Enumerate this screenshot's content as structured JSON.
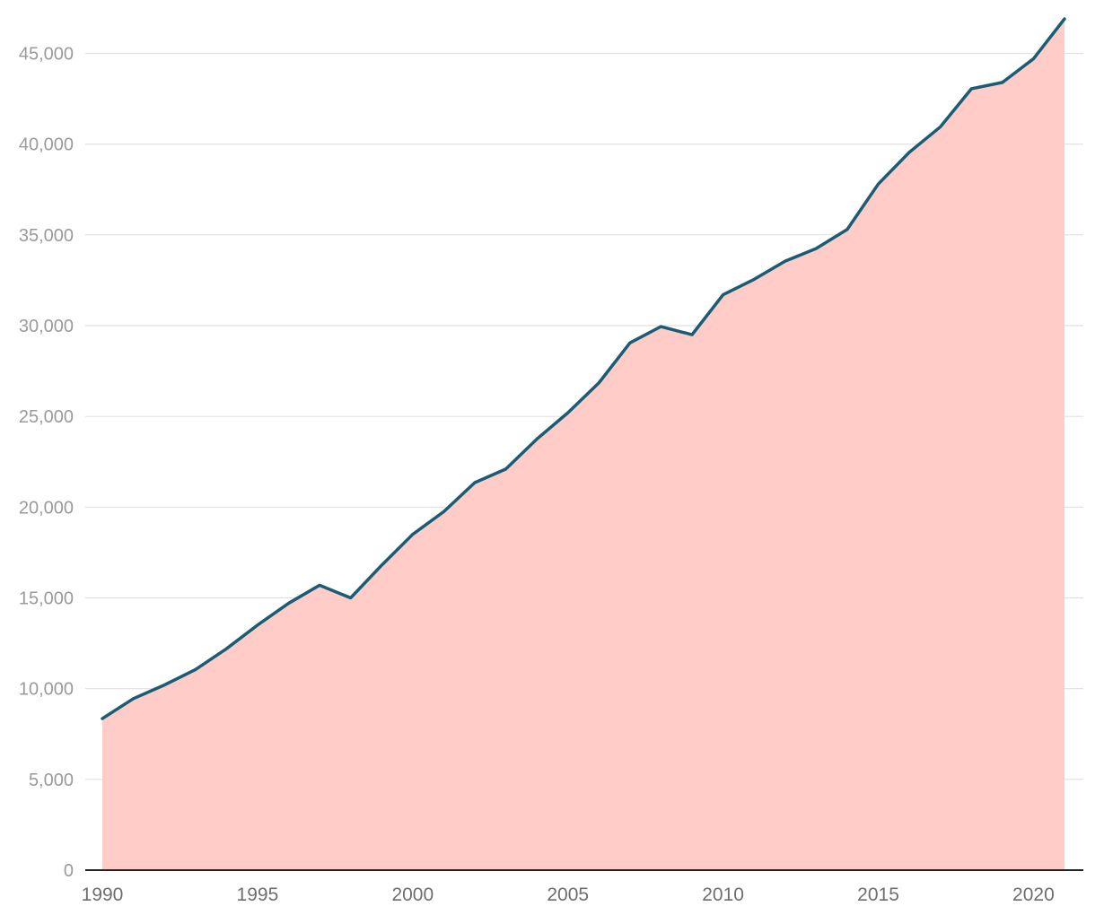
{
  "chart_data": {
    "type": "area",
    "title": "",
    "xlabel": "",
    "ylabel": "",
    "grid": true,
    "legend": "none",
    "xlim": [
      1990,
      2021
    ],
    "ylim": [
      0,
      47000
    ],
    "x_ticks": [
      1990,
      1995,
      2000,
      2005,
      2010,
      2015,
      2020
    ],
    "y_ticks": [
      0,
      5000,
      10000,
      15000,
      20000,
      25000,
      30000,
      35000,
      40000,
      45000
    ],
    "y_tick_labels": [
      "0",
      "5,000",
      "10,000",
      "15,000",
      "20,000",
      "25,000",
      "30,000",
      "35,000",
      "40,000",
      "45,000"
    ],
    "x": [
      1990,
      1991,
      1992,
      1993,
      1994,
      1995,
      1996,
      1997,
      1998,
      1999,
      2000,
      2001,
      2002,
      2003,
      2004,
      2005,
      2006,
      2007,
      2008,
      2009,
      2010,
      2011,
      2012,
      2013,
      2014,
      2015,
      2016,
      2017,
      2018,
      2019,
      2020,
      2021
    ],
    "series": [
      {
        "values": [
          8350,
          9450,
          10200,
          11050,
          12200,
          13500,
          14700,
          15700,
          15000,
          16800,
          18500,
          19750,
          21350,
          22100,
          23750,
          25200,
          26850,
          29050,
          29950,
          29500,
          31700,
          32550,
          33550,
          34250,
          35300,
          37800,
          39550,
          40950,
          43050,
          43400,
          44700,
          46900
        ],
        "line_color": "#1b5c75",
        "fill_color": "#ffccc7"
      }
    ]
  }
}
